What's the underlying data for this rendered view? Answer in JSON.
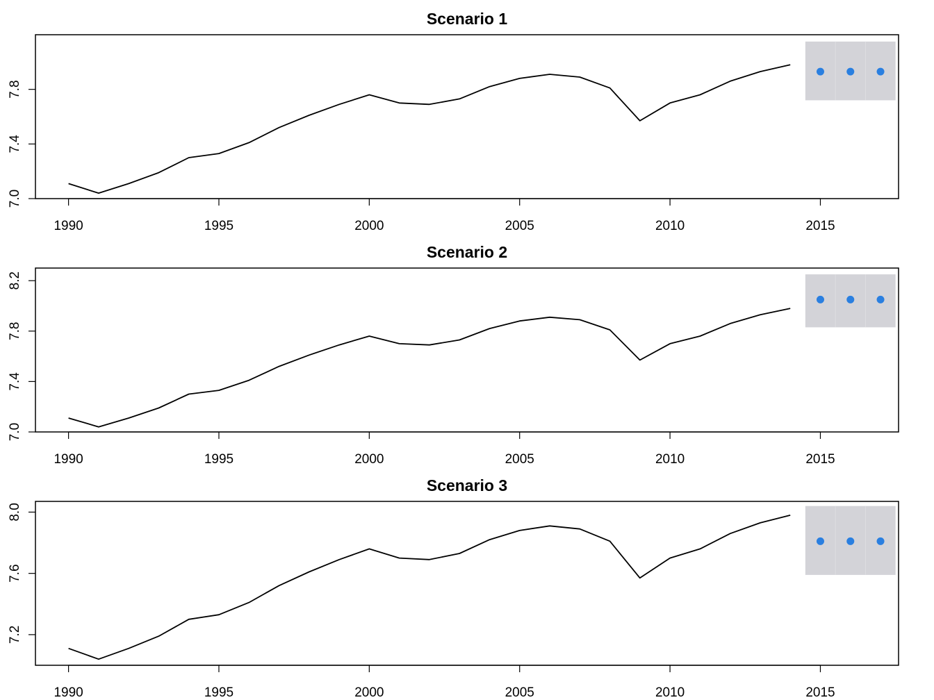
{
  "chart_data": [
    {
      "type": "line",
      "title": "Scenario 1",
      "xlim": [
        1988.9,
        2017.6
      ],
      "ylim": [
        7.0,
        8.2
      ],
      "xticks": [
        "1990",
        "1995",
        "2000",
        "2005",
        "2010",
        "2015"
      ],
      "yticks": [
        "7.0",
        "7.4",
        "7.8"
      ],
      "x": [
        1990,
        1991,
        1992,
        1993,
        1994,
        1995,
        1996,
        1997,
        1998,
        1999,
        2000,
        2001,
        2002,
        2003,
        2004,
        2005,
        2006,
        2007,
        2008,
        2009,
        2010,
        2011,
        2012,
        2013,
        2014
      ],
      "values": [
        7.11,
        7.04,
        7.11,
        7.19,
        7.3,
        7.33,
        7.41,
        7.52,
        7.61,
        7.69,
        7.76,
        7.7,
        7.69,
        7.73,
        7.82,
        7.88,
        7.91,
        7.89,
        7.81,
        7.57,
        7.7,
        7.76,
        7.86,
        7.93,
        7.98
      ],
      "forecast": {
        "x": [
          2015,
          2016,
          2017
        ],
        "values": [
          7.93,
          7.93,
          7.93
        ],
        "band": {
          "x_from": 2014.5,
          "x_to": 2017.5,
          "y_from": 7.72,
          "y_to": 8.15
        }
      }
    },
    {
      "type": "line",
      "title": "Scenario 2",
      "xlim": [
        1988.9,
        2017.6
      ],
      "ylim": [
        7.0,
        8.3
      ],
      "xticks": [
        "1990",
        "1995",
        "2000",
        "2005",
        "2010",
        "2015"
      ],
      "yticks": [
        "7.0",
        "7.4",
        "7.8",
        "8.2"
      ],
      "x": [
        1990,
        1991,
        1992,
        1993,
        1994,
        1995,
        1996,
        1997,
        1998,
        1999,
        2000,
        2001,
        2002,
        2003,
        2004,
        2005,
        2006,
        2007,
        2008,
        2009,
        2010,
        2011,
        2012,
        2013,
        2014
      ],
      "values": [
        7.11,
        7.04,
        7.11,
        7.19,
        7.3,
        7.33,
        7.41,
        7.52,
        7.61,
        7.69,
        7.76,
        7.7,
        7.69,
        7.73,
        7.82,
        7.88,
        7.91,
        7.89,
        7.81,
        7.57,
        7.7,
        7.76,
        7.86,
        7.93,
        7.98
      ],
      "forecast": {
        "x": [
          2015,
          2016,
          2017
        ],
        "values": [
          8.05,
          8.05,
          8.05
        ],
        "band": {
          "x_from": 2014.5,
          "x_to": 2017.5,
          "y_from": 7.83,
          "y_to": 8.25
        }
      }
    },
    {
      "type": "line",
      "title": "Scenario 3",
      "xlim": [
        1988.9,
        2017.6
      ],
      "ylim": [
        7.0,
        8.07
      ],
      "xticks": [
        "1990",
        "1995",
        "2000",
        "2005",
        "2010",
        "2015"
      ],
      "yticks": [
        "7.2",
        "7.6",
        "8.0"
      ],
      "x": [
        1990,
        1991,
        1992,
        1993,
        1994,
        1995,
        1996,
        1997,
        1998,
        1999,
        2000,
        2001,
        2002,
        2003,
        2004,
        2005,
        2006,
        2007,
        2008,
        2009,
        2010,
        2011,
        2012,
        2013,
        2014
      ],
      "values": [
        7.11,
        7.04,
        7.11,
        7.19,
        7.3,
        7.33,
        7.41,
        7.52,
        7.61,
        7.69,
        7.76,
        7.7,
        7.69,
        7.73,
        7.82,
        7.88,
        7.91,
        7.89,
        7.81,
        7.57,
        7.7,
        7.76,
        7.86,
        7.93,
        7.98
      ],
      "forecast": {
        "x": [
          2015,
          2016,
          2017
        ],
        "values": [
          7.81,
          7.81,
          7.81
        ],
        "band": {
          "x_from": 2014.5,
          "x_to": 2017.5,
          "y_from": 7.59,
          "y_to": 8.04
        }
      }
    }
  ],
  "colors": {
    "line": "#000000",
    "forecast_point": "#2a7fe0",
    "band": "#d3d3d8",
    "band_divider": "#dedee2"
  }
}
